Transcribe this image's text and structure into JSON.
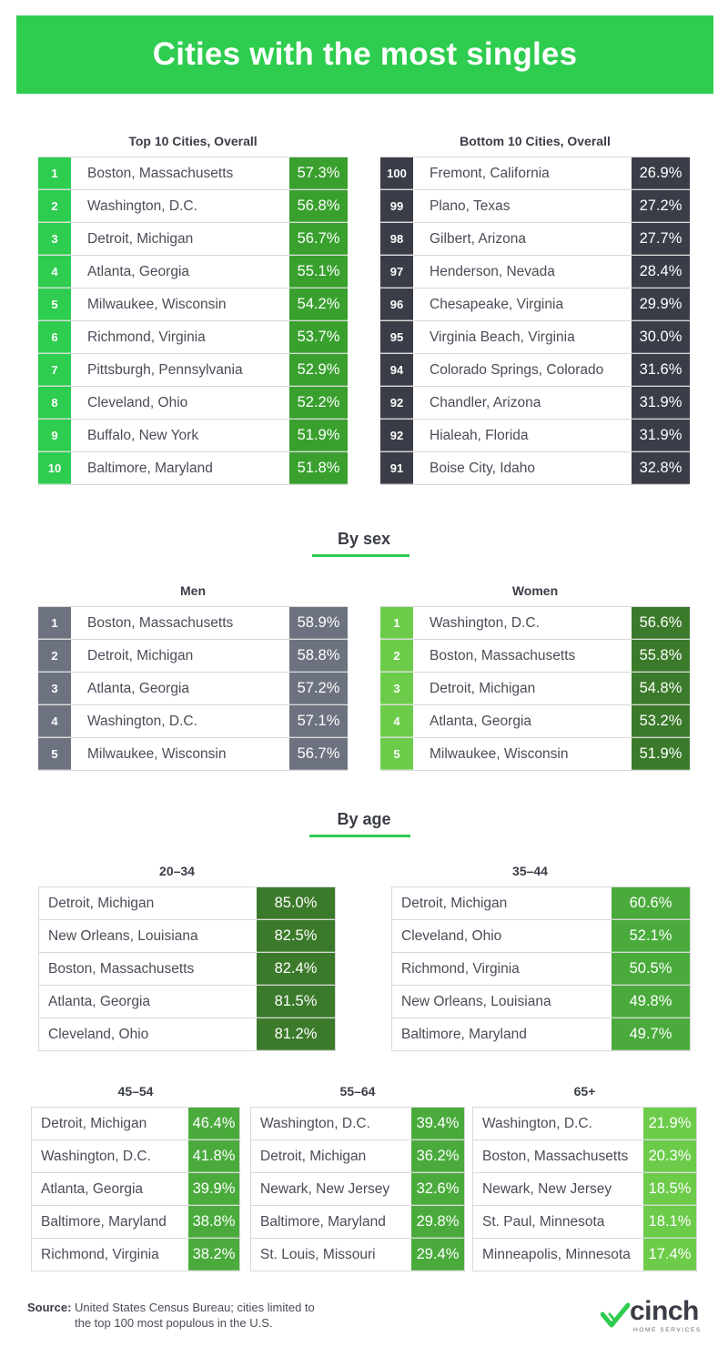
{
  "title": "Cities with the most singles",
  "top10": {
    "caption": "Top 10 Cities, Overall",
    "rows": [
      {
        "rank": "1",
        "city": "Boston, Massachusetts",
        "value": "57.3%"
      },
      {
        "rank": "2",
        "city": "Washington, D.C.",
        "value": "56.8%"
      },
      {
        "rank": "3",
        "city": "Detroit, Michigan",
        "value": "56.7%"
      },
      {
        "rank": "4",
        "city": "Atlanta, Georgia",
        "value": "55.1%"
      },
      {
        "rank": "5",
        "city": "Milwaukee, Wisconsin",
        "value": "54.2%"
      },
      {
        "rank": "6",
        "city": "Richmond, Virginia",
        "value": "53.7%"
      },
      {
        "rank": "7",
        "city": "Pittsburgh, Pennsylvania",
        "value": "52.9%"
      },
      {
        "rank": "8",
        "city": "Cleveland, Ohio",
        "value": "52.2%"
      },
      {
        "rank": "9",
        "city": "Buffalo, New York",
        "value": "51.9%"
      },
      {
        "rank": "10",
        "city": "Baltimore, Maryland",
        "value": "51.8%"
      }
    ]
  },
  "bottom10": {
    "caption": "Bottom 10 Cities, Overall",
    "rows": [
      {
        "rank": "100",
        "city": "Fremont, California",
        "value": "26.9%"
      },
      {
        "rank": "99",
        "city": "Plano, Texas",
        "value": "27.2%"
      },
      {
        "rank": "98",
        "city": "Gilbert, Arizona",
        "value": "27.7%"
      },
      {
        "rank": "97",
        "city": "Henderson, Nevada",
        "value": "28.4%"
      },
      {
        "rank": "96",
        "city": "Chesapeake, Virginia",
        "value": "29.9%"
      },
      {
        "rank": "95",
        "city": "Virginia Beach, Virginia",
        "value": "30.0%"
      },
      {
        "rank": "94",
        "city": "Colorado Springs, Colorado",
        "value": "31.6%"
      },
      {
        "rank": "92",
        "city": "Chandler, Arizona",
        "value": "31.9%"
      },
      {
        "rank": "92",
        "city": "Hialeah, Florida",
        "value": "31.9%"
      },
      {
        "rank": "91",
        "city": "Boise City, Idaho",
        "value": "32.8%"
      }
    ]
  },
  "by_sex": {
    "heading": "By sex",
    "men": {
      "caption": "Men",
      "rows": [
        {
          "rank": "1",
          "city": "Boston, Massachusetts",
          "value": "58.9%"
        },
        {
          "rank": "2",
          "city": "Detroit, Michigan",
          "value": "58.8%"
        },
        {
          "rank": "3",
          "city": "Atlanta, Georgia",
          "value": "57.2%"
        },
        {
          "rank": "4",
          "city": "Washington, D.C.",
          "value": "57.1%"
        },
        {
          "rank": "5",
          "city": "Milwaukee, Wisconsin",
          "value": "56.7%"
        }
      ]
    },
    "women": {
      "caption": "Women",
      "rows": [
        {
          "rank": "1",
          "city": "Washington, D.C.",
          "value": "56.6%"
        },
        {
          "rank": "2",
          "city": "Boston, Massachusetts",
          "value": "55.8%"
        },
        {
          "rank": "3",
          "city": "Detroit, Michigan",
          "value": "54.8%"
        },
        {
          "rank": "4",
          "city": "Atlanta, Georgia",
          "value": "53.2%"
        },
        {
          "rank": "5",
          "city": "Milwaukee, Wisconsin",
          "value": "51.9%"
        }
      ]
    }
  },
  "by_age": {
    "heading": "By age",
    "age_20_34": {
      "caption": "20–34",
      "rows": [
        {
          "city": "Detroit, Michigan",
          "value": "85.0%"
        },
        {
          "city": "New Orleans, Louisiana",
          "value": "82.5%"
        },
        {
          "city": "Boston, Massachusetts",
          "value": "82.4%"
        },
        {
          "city": "Atlanta, Georgia",
          "value": "81.5%"
        },
        {
          "city": "Cleveland, Ohio",
          "value": "81.2%"
        }
      ]
    },
    "age_35_44": {
      "caption": "35–44",
      "rows": [
        {
          "city": "Detroit, Michigan",
          "value": "60.6%"
        },
        {
          "city": "Cleveland, Ohio",
          "value": "52.1%"
        },
        {
          "city": "Richmond, Virginia",
          "value": "50.5%"
        },
        {
          "city": "New Orleans, Louisiana",
          "value": "49.8%"
        },
        {
          "city": "Baltimore, Maryland",
          "value": "49.7%"
        }
      ]
    },
    "age_45_54": {
      "caption": "45–54",
      "rows": [
        {
          "city": "Detroit, Michigan",
          "value": "46.4%"
        },
        {
          "city": "Washington, D.C.",
          "value": "41.8%"
        },
        {
          "city": "Atlanta, Georgia",
          "value": "39.9%"
        },
        {
          "city": "Baltimore, Maryland",
          "value": "38.8%"
        },
        {
          "city": "Richmond, Virginia",
          "value": "38.2%"
        }
      ]
    },
    "age_55_64": {
      "caption": "55–64",
      "rows": [
        {
          "city": "Washington, D.C.",
          "value": "39.4%"
        },
        {
          "city": "Detroit, Michigan",
          "value": "36.2%"
        },
        {
          "city": "Newark, New Jersey",
          "value": "32.6%"
        },
        {
          "city": "Baltimore, Maryland",
          "value": "29.8%"
        },
        {
          "city": "St. Louis, Missouri",
          "value": "29.4%"
        }
      ]
    },
    "age_65_plus": {
      "caption": "65+",
      "rows": [
        {
          "city": "Washington, D.C.",
          "value": "21.9%"
        },
        {
          "city": "Boston, Massachusetts",
          "value": "20.3%"
        },
        {
          "city": "Newark, New Jersey",
          "value": "18.5%"
        },
        {
          "city": "St. Paul, Minnesota",
          "value": "18.1%"
        },
        {
          "city": "Minneapolis, Minnesota",
          "value": "17.4%"
        }
      ]
    }
  },
  "footer": {
    "source_label": "Source:",
    "source_text": "United States Census Bureau; cities limited to",
    "source_text_2": "the top 100 most populous in the U.S."
  },
  "logo": {
    "word": "cinch",
    "sub": "HOME SERVICES"
  },
  "colors": {
    "brand_green": "#2ecc4f",
    "top_green": "#39a02e",
    "dark_slate": "#3a3d47",
    "men_slate": "#6d7280",
    "age_dark_green": "#3b7a2a",
    "age_mid_green": "#4aab3c",
    "age_light_green": "#6ccc4a"
  }
}
